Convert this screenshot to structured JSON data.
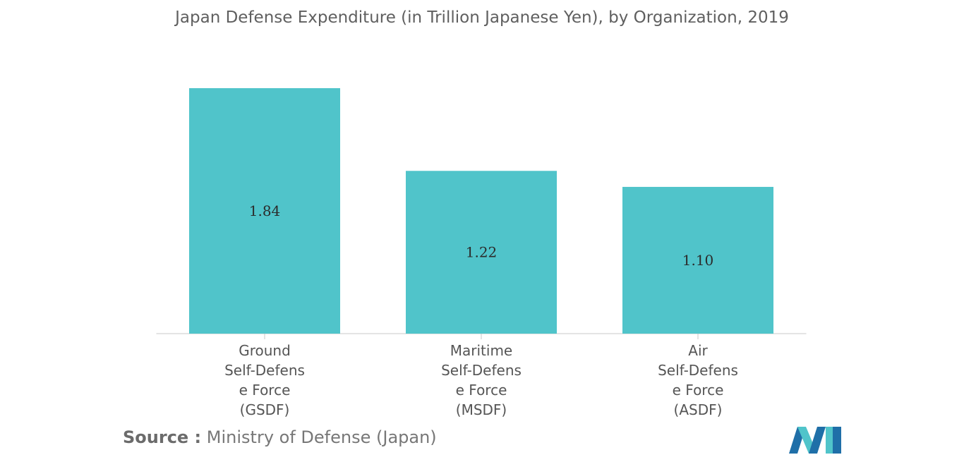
{
  "chart_data": {
    "type": "bar",
    "title": "Japan Defense Expenditure (in Trillion Japanese Yen), by Organization, 2019",
    "categories": [
      [
        "Ground",
        "Self-Defens",
        "e Force",
        "(GSDF)"
      ],
      [
        "Maritime",
        "Self-Defens",
        "e Force",
        "(MSDF)"
      ],
      [
        "Air",
        "Self-Defens",
        "e Force",
        "(ASDF)"
      ]
    ],
    "values": [
      1.84,
      1.22,
      1.1
    ],
    "value_labels": [
      "1.84",
      "1.22",
      "1.10"
    ],
    "ylim": [
      0,
      1.84
    ],
    "xlabel": "",
    "ylabel": "",
    "grid": false,
    "legend": "none",
    "bar_color": "#50c4ca",
    "axis_color": "#c8c8c8"
  },
  "source": {
    "prefix": "Source :",
    "text": "Ministry of Defense (Japan)"
  },
  "logo": {
    "icon": "mordor-intelligence-logo-icon",
    "colors": [
      "#1f6fa8",
      "#50c4ca"
    ]
  }
}
